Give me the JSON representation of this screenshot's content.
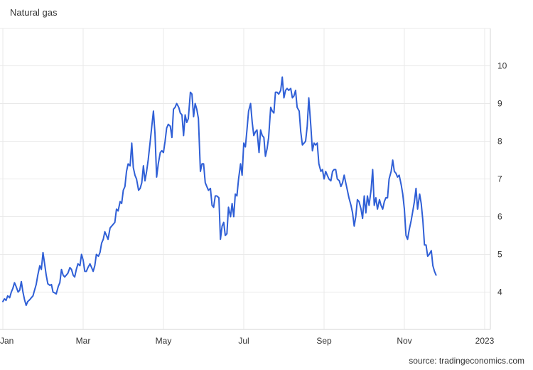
{
  "chart_data": {
    "type": "line",
    "title": "Natural gas",
    "source": "source: tradingeconomics.com",
    "y_ticks": [
      "4",
      "5",
      "6",
      "7",
      "8",
      "9",
      "10"
    ],
    "x_ticks": [
      {
        "label": "Jan",
        "x": 0
      },
      {
        "label": "Mar",
        "x": 2
      },
      {
        "label": "May",
        "x": 4
      },
      {
        "label": "Jul",
        "x": 6
      },
      {
        "label": "Sep",
        "x": 8
      },
      {
        "label": "Nov",
        "x": 10
      },
      {
        "label": "2023",
        "x": 12
      }
    ],
    "ylim": [
      3,
      11
    ],
    "xlim": [
      0,
      12
    ],
    "grid": true,
    "series": [
      {
        "color": "#2f5fd6",
        "points": [
          [
            0.0,
            3.75
          ],
          [
            0.04,
            3.82
          ],
          [
            0.08,
            3.78
          ],
          [
            0.12,
            3.9
          ],
          [
            0.17,
            3.85
          ],
          [
            0.21,
            4.0
          ],
          [
            0.25,
            4.1
          ],
          [
            0.29,
            4.25
          ],
          [
            0.33,
            4.15
          ],
          [
            0.38,
            4.0
          ],
          [
            0.42,
            4.05
          ],
          [
            0.46,
            4.28
          ],
          [
            0.5,
            4.0
          ],
          [
            0.54,
            3.8
          ],
          [
            0.58,
            3.65
          ],
          [
            0.62,
            3.75
          ],
          [
            0.67,
            3.8
          ],
          [
            0.71,
            3.85
          ],
          [
            0.75,
            3.9
          ],
          [
            0.79,
            4.05
          ],
          [
            0.83,
            4.2
          ],
          [
            0.87,
            4.45
          ],
          [
            0.92,
            4.7
          ],
          [
            0.96,
            4.6
          ],
          [
            1.0,
            5.05
          ],
          [
            1.04,
            4.75
          ],
          [
            1.08,
            4.45
          ],
          [
            1.12,
            4.22
          ],
          [
            1.17,
            4.18
          ],
          [
            1.21,
            4.2
          ],
          [
            1.25,
            4.0
          ],
          [
            1.29,
            3.98
          ],
          [
            1.33,
            3.95
          ],
          [
            1.38,
            4.15
          ],
          [
            1.42,
            4.25
          ],
          [
            1.46,
            4.6
          ],
          [
            1.5,
            4.45
          ],
          [
            1.54,
            4.4
          ],
          [
            1.58,
            4.45
          ],
          [
            1.62,
            4.5
          ],
          [
            1.67,
            4.65
          ],
          [
            1.71,
            4.6
          ],
          [
            1.75,
            4.45
          ],
          [
            1.79,
            4.4
          ],
          [
            1.83,
            4.6
          ],
          [
            1.87,
            4.75
          ],
          [
            1.92,
            4.7
          ],
          [
            1.96,
            5.0
          ],
          [
            2.0,
            4.85
          ],
          [
            2.04,
            4.55
          ],
          [
            2.08,
            4.55
          ],
          [
            2.12,
            4.65
          ],
          [
            2.17,
            4.75
          ],
          [
            2.21,
            4.65
          ],
          [
            2.25,
            4.55
          ],
          [
            2.29,
            4.7
          ],
          [
            2.33,
            5.0
          ],
          [
            2.38,
            4.95
          ],
          [
            2.42,
            5.05
          ],
          [
            2.46,
            5.3
          ],
          [
            2.5,
            5.4
          ],
          [
            2.54,
            5.6
          ],
          [
            2.58,
            5.5
          ],
          [
            2.62,
            5.4
          ],
          [
            2.67,
            5.7
          ],
          [
            2.71,
            5.75
          ],
          [
            2.75,
            5.8
          ],
          [
            2.79,
            5.85
          ],
          [
            2.83,
            6.2
          ],
          [
            2.87,
            6.15
          ],
          [
            2.92,
            6.4
          ],
          [
            2.96,
            6.35
          ],
          [
            3.0,
            6.7
          ],
          [
            3.04,
            6.8
          ],
          [
            3.08,
            7.2
          ],
          [
            3.12,
            7.4
          ],
          [
            3.17,
            7.35
          ],
          [
            3.21,
            7.95
          ],
          [
            3.25,
            7.3
          ],
          [
            3.29,
            7.1
          ],
          [
            3.33,
            7.0
          ],
          [
            3.38,
            6.7
          ],
          [
            3.42,
            6.75
          ],
          [
            3.46,
            6.9
          ],
          [
            3.5,
            7.35
          ],
          [
            3.54,
            6.95
          ],
          [
            3.58,
            7.2
          ],
          [
            3.62,
            7.5
          ],
          [
            3.67,
            8.0
          ],
          [
            3.71,
            8.4
          ],
          [
            3.75,
            8.8
          ],
          [
            3.79,
            8.2
          ],
          [
            3.83,
            7.05
          ],
          [
            3.87,
            7.4
          ],
          [
            3.92,
            7.7
          ],
          [
            3.96,
            7.75
          ],
          [
            4.0,
            7.7
          ],
          [
            4.04,
            8.0
          ],
          [
            4.08,
            8.35
          ],
          [
            4.12,
            8.45
          ],
          [
            4.17,
            8.4
          ],
          [
            4.21,
            8.1
          ],
          [
            4.25,
            8.85
          ],
          [
            4.29,
            8.9
          ],
          [
            4.33,
            9.0
          ],
          [
            4.38,
            8.9
          ],
          [
            4.42,
            8.75
          ],
          [
            4.46,
            8.7
          ],
          [
            4.5,
            8.15
          ],
          [
            4.54,
            8.7
          ],
          [
            4.58,
            8.5
          ],
          [
            4.62,
            8.6
          ],
          [
            4.67,
            9.3
          ],
          [
            4.71,
            9.25
          ],
          [
            4.75,
            8.65
          ],
          [
            4.79,
            9.0
          ],
          [
            4.83,
            8.85
          ],
          [
            4.87,
            8.6
          ],
          [
            4.92,
            7.2
          ],
          [
            4.96,
            7.4
          ],
          [
            5.0,
            7.4
          ],
          [
            5.04,
            6.9
          ],
          [
            5.08,
            6.8
          ],
          [
            5.12,
            6.7
          ],
          [
            5.17,
            6.75
          ],
          [
            5.21,
            6.3
          ],
          [
            5.25,
            6.25
          ],
          [
            5.29,
            6.55
          ],
          [
            5.33,
            6.55
          ],
          [
            5.38,
            6.5
          ],
          [
            5.42,
            5.4
          ],
          [
            5.46,
            5.75
          ],
          [
            5.5,
            5.85
          ],
          [
            5.54,
            5.5
          ],
          [
            5.58,
            5.55
          ],
          [
            5.62,
            6.25
          ],
          [
            5.67,
            6.0
          ],
          [
            5.71,
            6.35
          ],
          [
            5.75,
            6.0
          ],
          [
            5.79,
            6.6
          ],
          [
            5.83,
            6.55
          ],
          [
            5.87,
            7.0
          ],
          [
            5.92,
            7.4
          ],
          [
            5.96,
            7.1
          ],
          [
            6.0,
            7.95
          ],
          [
            6.04,
            7.85
          ],
          [
            6.08,
            8.3
          ],
          [
            6.12,
            8.8
          ],
          [
            6.17,
            9.0
          ],
          [
            6.21,
            8.5
          ],
          [
            6.25,
            8.15
          ],
          [
            6.29,
            8.25
          ],
          [
            6.33,
            8.3
          ],
          [
            6.38,
            7.7
          ],
          [
            6.42,
            8.3
          ],
          [
            6.46,
            8.15
          ],
          [
            6.5,
            8.1
          ],
          [
            6.54,
            7.6
          ],
          [
            6.58,
            7.8
          ],
          [
            6.62,
            8.1
          ],
          [
            6.67,
            8.9
          ],
          [
            6.71,
            8.8
          ],
          [
            6.75,
            8.75
          ],
          [
            6.79,
            9.3
          ],
          [
            6.83,
            9.3
          ],
          [
            6.87,
            9.25
          ],
          [
            6.92,
            9.35
          ],
          [
            6.96,
            9.7
          ],
          [
            7.0,
            9.15
          ],
          [
            7.04,
            9.35
          ],
          [
            7.08,
            9.4
          ],
          [
            7.12,
            9.35
          ],
          [
            7.17,
            9.4
          ],
          [
            7.21,
            9.15
          ],
          [
            7.25,
            9.2
          ],
          [
            7.29,
            9.35
          ],
          [
            7.33,
            8.9
          ],
          [
            7.38,
            8.8
          ],
          [
            7.42,
            8.25
          ],
          [
            7.46,
            7.9
          ],
          [
            7.5,
            7.95
          ],
          [
            7.54,
            8.0
          ],
          [
            7.58,
            8.4
          ],
          [
            7.62,
            9.15
          ],
          [
            7.67,
            8.4
          ],
          [
            7.71,
            7.75
          ],
          [
            7.75,
            7.95
          ],
          [
            7.79,
            7.9
          ],
          [
            7.83,
            7.95
          ],
          [
            7.87,
            7.4
          ],
          [
            7.92,
            7.2
          ],
          [
            7.96,
            7.25
          ],
          [
            8.0,
            7.0
          ],
          [
            8.04,
            7.2
          ],
          [
            8.08,
            7.1
          ],
          [
            8.12,
            7.0
          ],
          [
            8.17,
            6.95
          ],
          [
            8.21,
            7.2
          ],
          [
            8.25,
            7.25
          ],
          [
            8.29,
            7.25
          ],
          [
            8.33,
            7.0
          ],
          [
            8.38,
            6.95
          ],
          [
            8.42,
            6.8
          ],
          [
            8.46,
            6.9
          ],
          [
            8.5,
            7.1
          ],
          [
            8.54,
            6.9
          ],
          [
            8.58,
            6.7
          ],
          [
            8.62,
            6.5
          ],
          [
            8.67,
            6.3
          ],
          [
            8.71,
            6.1
          ],
          [
            8.75,
            5.75
          ],
          [
            8.79,
            6.0
          ],
          [
            8.83,
            6.45
          ],
          [
            8.87,
            6.4
          ],
          [
            8.92,
            6.2
          ],
          [
            8.96,
            5.95
          ],
          [
            9.0,
            6.55
          ],
          [
            9.04,
            6.1
          ],
          [
            9.08,
            6.55
          ],
          [
            9.12,
            6.3
          ],
          [
            9.17,
            6.7
          ],
          [
            9.21,
            7.25
          ],
          [
            9.25,
            6.3
          ],
          [
            9.29,
            6.5
          ],
          [
            9.33,
            6.2
          ],
          [
            9.38,
            6.45
          ],
          [
            9.42,
            6.3
          ],
          [
            9.46,
            6.2
          ],
          [
            9.5,
            6.4
          ],
          [
            9.54,
            6.5
          ],
          [
            9.58,
            6.5
          ],
          [
            9.62,
            7.0
          ],
          [
            9.67,
            7.2
          ],
          [
            9.71,
            7.5
          ],
          [
            9.75,
            7.2
          ],
          [
            9.79,
            7.15
          ],
          [
            9.83,
            7.05
          ],
          [
            9.87,
            7.1
          ],
          [
            9.92,
            6.85
          ],
          [
            9.96,
            6.6
          ],
          [
            10.0,
            6.2
          ],
          [
            10.04,
            5.5
          ],
          [
            10.08,
            5.4
          ],
          [
            10.12,
            5.65
          ],
          [
            10.17,
            5.9
          ],
          [
            10.21,
            6.15
          ],
          [
            10.25,
            6.4
          ],
          [
            10.29,
            6.75
          ],
          [
            10.33,
            6.2
          ],
          [
            10.38,
            6.6
          ],
          [
            10.42,
            6.35
          ],
          [
            10.46,
            5.9
          ],
          [
            10.5,
            5.25
          ],
          [
            10.54,
            5.25
          ],
          [
            10.58,
            4.95
          ],
          [
            10.62,
            5.0
          ],
          [
            10.67,
            5.1
          ],
          [
            10.71,
            4.7
          ],
          [
            10.75,
            4.55
          ],
          [
            10.79,
            4.45
          ]
        ]
      }
    ]
  }
}
